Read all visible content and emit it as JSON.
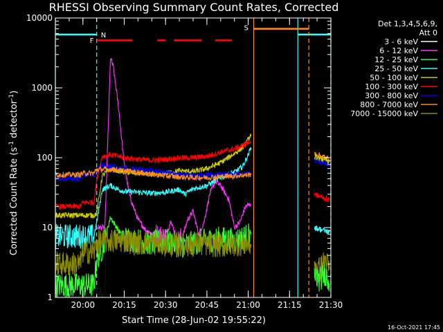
{
  "chart_data": {
    "type": "line",
    "title": "RHESSI Observing Summary Count Rates, Corrected",
    "xlabel": "Start Time (28-Jun-02 19:55:22)",
    "ylabel_main": "Corrected Count Rate (s",
    "ylabel_sup1": "-1",
    "ylabel_mid": " detector",
    "ylabel_sup2": "-1",
    "ylabel_end": ")",
    "yscale": "log",
    "ylim": [
      1,
      10000
    ],
    "xlim_min": [
      -5,
      95
    ],
    "x_ticks": [
      {
        "t": 5,
        "label": "20:00"
      },
      {
        "t": 20,
        "label": "20:15"
      },
      {
        "t": 35,
        "label": "20:30"
      },
      {
        "t": 50,
        "label": "20:45"
      },
      {
        "t": 65,
        "label": "21:00"
      },
      {
        "t": 80,
        "label": "21:15"
      },
      {
        "t": 95,
        "label": "21:30"
      }
    ],
    "y_ticks": [
      {
        "v": 1,
        "label": "1"
      },
      {
        "v": 10,
        "label": "10"
      },
      {
        "v": 100,
        "label": "100"
      },
      {
        "v": 1000,
        "label": "1000"
      },
      {
        "v": 10000,
        "label": "10000"
      }
    ],
    "legend": {
      "header1": "Det 1,3,4,5,6,9,",
      "header2": "Att 0",
      "entries": [
        {
          "label": "3 - 6 keV",
          "color": "#000000"
        },
        {
          "label": "6 - 12 keV",
          "color": "#ff33ff"
        },
        {
          "label": "12 - 25 keV",
          "color": "#33ff33"
        },
        {
          "label": "25 - 50 keV",
          "color": "#33ffff"
        },
        {
          "label": "50 - 100 keV",
          "color": "#cccc00"
        },
        {
          "label": "100 - 300 keV",
          "color": "#ff0000"
        },
        {
          "label": "300 - 800 keV",
          "color": "#0000ee"
        },
        {
          "label": "800 - 7000 keV",
          "color": "#ff8c1a"
        },
        {
          "label": "7000 - 15000 keV",
          "color": "#8b8b00"
        }
      ]
    },
    "annotations": {
      "night_label": "N",
      "flare_label": "F",
      "saa_label": "S",
      "timestamp": "16-Oct-2021 17:45"
    },
    "series": [
      {
        "name": "3 - 6 keV",
        "color": "#000000",
        "t": [
          -5,
          10,
          13,
          15,
          16,
          18,
          20,
          22,
          25,
          28,
          31,
          35,
          37,
          39,
          41,
          43,
          45,
          47,
          49,
          51,
          53,
          55,
          58,
          60,
          62,
          64,
          66
        ],
        "v": [
          1,
          1,
          1,
          1400,
          1100,
          300,
          60,
          25,
          13,
          10,
          9,
          8,
          13,
          7,
          8,
          14,
          18,
          9,
          13,
          30,
          45,
          38,
          22,
          12,
          15,
          24,
          24
        ]
      },
      {
        "name": "6 - 12 keV",
        "color": "#ff33ff",
        "t": [
          10,
          13,
          15,
          16,
          18,
          20,
          22,
          25,
          28,
          31,
          35,
          37,
          39,
          41,
          43,
          45,
          47,
          49,
          51,
          53,
          55,
          58,
          60,
          62,
          64,
          66
        ],
        "v": [
          10,
          10,
          2700,
          2000,
          500,
          80,
          28,
          13,
          9,
          8,
          7,
          13,
          6,
          7,
          13,
          17,
          8,
          12,
          30,
          46,
          40,
          25,
          10,
          12,
          20,
          22
        ]
      },
      {
        "name": "12 - 25 keV",
        "color": "#33ff33",
        "t": [
          -5,
          9,
          10,
          12,
          15,
          18,
          20,
          25,
          30,
          35,
          40,
          45,
          50,
          55,
          60,
          66
        ],
        "v": [
          1.5,
          1.5,
          3.5,
          5,
          14,
          9,
          7,
          6.5,
          6,
          6.5,
          5.5,
          6,
          6.5,
          7,
          6.5,
          8
        ]
      },
      {
        "name": "25 - 50 keV",
        "color": "#33ffff",
        "t": [
          -5,
          9,
          10,
          12,
          15,
          18,
          20,
          25,
          30,
          35,
          40,
          42,
          45,
          50,
          55,
          60,
          63,
          65,
          66
        ],
        "v": [
          7.5,
          7.5,
          12,
          35,
          40,
          35,
          33,
          32,
          31,
          32,
          35,
          30,
          36,
          40,
          52,
          62,
          75,
          110,
          140
        ]
      },
      {
        "name": "50 - 100 keV",
        "color": "#cccc00",
        "t": [
          -5,
          9,
          10,
          12,
          15,
          18,
          20,
          25,
          30,
          35,
          40,
          45,
          50,
          55,
          60,
          63,
          65,
          66
        ],
        "v": [
          15,
          15,
          16,
          55,
          70,
          65,
          62,
          60,
          58,
          60,
          65,
          63,
          70,
          85,
          115,
          140,
          180,
          220
        ]
      },
      {
        "name": "100 - 300 keV",
        "color": "#ff0000",
        "t": [
          -5,
          4,
          5,
          9,
          10,
          12,
          15,
          18,
          20,
          25,
          30,
          35,
          40,
          45,
          50,
          55,
          60,
          63,
          65,
          66
        ],
        "v": [
          20,
          20,
          23,
          23,
          48,
          105,
          110,
          105,
          100,
          95,
          92,
          95,
          100,
          100,
          105,
          120,
          135,
          150,
          165,
          175
        ]
      },
      {
        "name": "300 - 800 keV",
        "color": "#0000ee",
        "t": [
          -5,
          4,
          5,
          9,
          10,
          12,
          15,
          18,
          20,
          25,
          30,
          35,
          40,
          45,
          50,
          55,
          60,
          66
        ],
        "v": [
          50,
          50,
          57,
          57,
          65,
          78,
          75,
          72,
          70,
          68,
          65,
          62,
          58,
          56,
          57,
          58,
          59,
          60
        ]
      },
      {
        "name": "800 - 7000 keV",
        "color": "#ff8c1a",
        "t": [
          -5,
          4,
          5,
          9,
          10,
          15,
          20,
          25,
          30,
          35,
          40,
          45,
          50,
          55,
          60,
          66
        ],
        "v": [
          57,
          57,
          60,
          60,
          68,
          68,
          65,
          62,
          58,
          55,
          53,
          52,
          52,
          54,
          55,
          57
        ]
      },
      {
        "name": "7000 - 15000 keV",
        "color": "#8b8b00",
        "t": [
          -5,
          4,
          5,
          9,
          10,
          12,
          15,
          20,
          25,
          30,
          35,
          40,
          45,
          50,
          55,
          60,
          66
        ],
        "v": [
          3,
          3,
          4.5,
          4.5,
          6,
          6.3,
          6.5,
          6.5,
          6,
          6,
          5.8,
          5.5,
          5.8,
          5.8,
          5.5,
          5.8,
          5.8
        ]
      },
      {
        "name": "100 - 300 keV post",
        "color": "#ff0000",
        "t": [
          89,
          91,
          93,
          94.5
        ],
        "v": [
          30,
          28,
          26,
          25
        ]
      },
      {
        "name": "300 - 800 keV post",
        "color": "#0000ee",
        "t": [
          89,
          91,
          93,
          94.5
        ],
        "v": [
          95,
          88,
          82,
          78
        ]
      },
      {
        "name": "800 - 7000 keV post",
        "color": "#ff8c1a",
        "t": [
          89,
          91,
          93,
          94.5
        ],
        "v": [
          115,
          108,
          100,
          95
        ]
      },
      {
        "name": "50 - 100 keV post",
        "color": "#cccc00",
        "t": [
          89,
          91,
          93,
          94.5
        ],
        "v": [
          105,
          98,
          92,
          88
        ]
      },
      {
        "name": "25 - 50 keV post",
        "color": "#33ffff",
        "t": [
          89,
          91,
          93,
          94.5
        ],
        "v": [
          10,
          9.5,
          9,
          8.5
        ]
      },
      {
        "name": "7000 - 15000 keV post",
        "color": "#8b8b00",
        "t": [
          89,
          91,
          93,
          94.5
        ],
        "v": [
          3,
          2.5,
          3.5,
          2.5
        ]
      },
      {
        "name": "12 - 25 keV post",
        "color": "#33ff33",
        "t": [
          89,
          91,
          93,
          94.5
        ],
        "v": [
          2,
          1.8,
          2.2,
          1.6
        ]
      }
    ],
    "night_segments": [
      {
        "t0": -5,
        "t1": 10,
        "level": 5800
      },
      {
        "t0": 83,
        "t1": 95,
        "level": 5800
      }
    ],
    "night_markers": [
      {
        "t": -5,
        "style": "solid"
      },
      {
        "t": 10,
        "style": "dashed"
      },
      {
        "t": 83,
        "style": "solid"
      },
      {
        "t": 95,
        "style": "dashed"
      }
    ],
    "saa_segment": {
      "t0": 67,
      "t1": 87,
      "level": 7000
    },
    "saa_markers": [
      {
        "t": 67,
        "style": "solid"
      },
      {
        "t": 87,
        "style": "dashed"
      }
    ],
    "flare_segments": [
      {
        "t0": 10,
        "t1": 23
      },
      {
        "t0": 32,
        "t1": 35
      },
      {
        "t0": 38,
        "t1": 48
      },
      {
        "t0": 53,
        "t1": 59
      }
    ],
    "flare_level": 4800
  }
}
